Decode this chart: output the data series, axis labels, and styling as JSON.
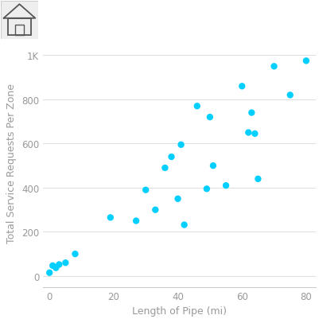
{
  "x": [
    0,
    1,
    2,
    3,
    5,
    8,
    19,
    27,
    30,
    33,
    36,
    38,
    40,
    41,
    42,
    46,
    49,
    50,
    51,
    55,
    60,
    62,
    63,
    64,
    65,
    70,
    75,
    80
  ],
  "y": [
    15,
    47,
    37,
    52,
    60,
    100,
    265,
    250,
    390,
    300,
    490,
    540,
    350,
    595,
    232,
    770,
    395,
    720,
    500,
    410,
    860,
    650,
    740,
    645,
    440,
    950,
    820,
    975
  ],
  "dot_color": "#00CFFF",
  "background_color": "#FFFFFF",
  "plot_bg_color": "#FFFFFF",
  "spine_color": "#CCCCCC",
  "grid_color": "#DDDDDD",
  "xlabel": "Length of Pipe (mi)",
  "ylabel": "Total Service Requests Per Zone",
  "xlim": [
    -2,
    83
  ],
  "ylim": [
    -50,
    1080
  ],
  "xticks": [
    0,
    20,
    40,
    60,
    80
  ],
  "yticks": [
    0,
    200,
    400,
    600,
    800,
    1000
  ],
  "ytick_labels": [
    "0",
    "200",
    "400",
    "600",
    "800",
    "1K"
  ],
  "tick_color": "#999999",
  "label_fontsize": 9,
  "tick_fontsize": 8.5,
  "marker_size": 6,
  "icon_box_color": "#EEEEEE",
  "icon_line_color": "#555555"
}
